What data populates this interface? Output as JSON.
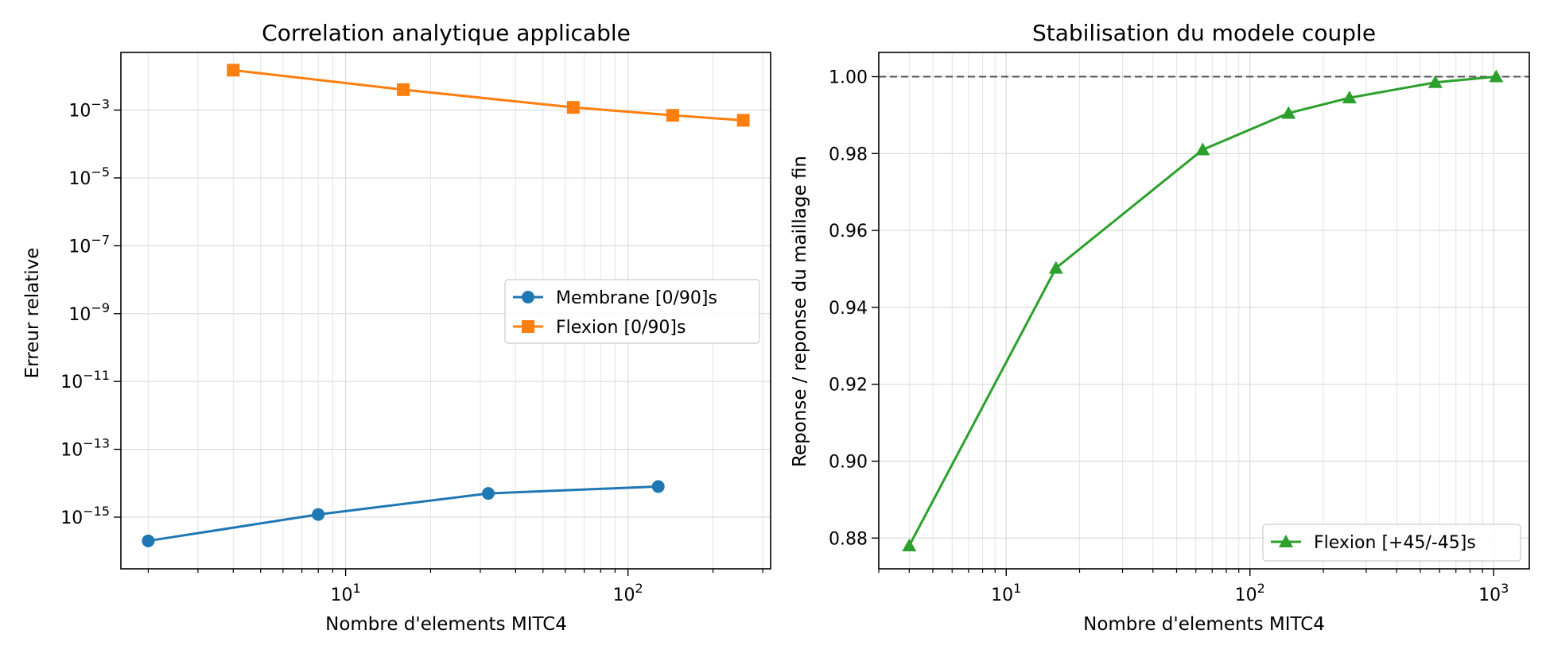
{
  "chart_data": [
    {
      "type": "line",
      "title": "Correlation analytique applicable",
      "xlabel": "Nombre d'elements MITC4",
      "ylabel": "Erreur relative",
      "xscale": "log",
      "yscale": "log",
      "xlim": [
        1.6,
        320
      ],
      "ylim": [
        3e-17,
        0.05
      ],
      "grid": true,
      "legend_position": "center-right",
      "x_ticks": [
        {
          "base": "10",
          "exp": "1",
          "value": 10
        },
        {
          "base": "10",
          "exp": "2",
          "value": 100
        }
      ],
      "y_ticks": [
        {
          "base": "10",
          "exp": "−3",
          "value": 0.001
        },
        {
          "base": "10",
          "exp": "−5",
          "value": 1e-05
        },
        {
          "base": "10",
          "exp": "−7",
          "value": 1e-07
        },
        {
          "base": "10",
          "exp": "−9",
          "value": 1e-09
        },
        {
          "base": "10",
          "exp": "−11",
          "value": 1e-11
        },
        {
          "base": "10",
          "exp": "−13",
          "value": 1e-13
        },
        {
          "base": "10",
          "exp": "−15",
          "value": 1e-15
        }
      ],
      "series": [
        {
          "name": "Membrane [0/90]s",
          "color": "#1f77b4",
          "marker": "circle",
          "x": [
            2,
            8,
            32,
            128
          ],
          "y": [
            2e-16,
            1.2e-15,
            5e-15,
            8e-15
          ]
        },
        {
          "name": "Flexion [0/90]s",
          "color": "#ff7f0e",
          "marker": "square",
          "x": [
            4,
            16,
            64,
            144,
            256
          ],
          "y": [
            0.015,
            0.004,
            0.0012,
            0.0007,
            0.0005
          ]
        }
      ]
    },
    {
      "type": "line",
      "title": "Stabilisation du modele couple",
      "xlabel": "Nombre d'elements MITC4",
      "ylabel": "Reponse / reponse du maillage fin",
      "xscale": "log",
      "yscale": "linear",
      "xlim": [
        3,
        1400
      ],
      "ylim": [
        0.872,
        1.0063
      ],
      "grid": true,
      "legend_position": "lower-right",
      "reference_line": {
        "y": 1.0,
        "style": "dashed",
        "color": "#555555"
      },
      "x_ticks": [
        {
          "base": "10",
          "exp": "1",
          "value": 10
        },
        {
          "base": "10",
          "exp": "2",
          "value": 100
        },
        {
          "base": "10",
          "exp": "3",
          "value": 1000
        }
      ],
      "y_ticks": [
        {
          "label": "0.88",
          "value": 0.88
        },
        {
          "label": "0.90",
          "value": 0.9
        },
        {
          "label": "0.92",
          "value": 0.92
        },
        {
          "label": "0.94",
          "value": 0.94
        },
        {
          "label": "0.96",
          "value": 0.96
        },
        {
          "label": "0.98",
          "value": 0.98
        },
        {
          "label": "1.00",
          "value": 1.0
        }
      ],
      "series": [
        {
          "name": "Flexion [+45/-45]s",
          "color": "#2ca02c",
          "marker": "triangle",
          "x": [
            4,
            16,
            64,
            144,
            256,
            576,
            1024
          ],
          "y": [
            0.878,
            0.9502,
            0.981,
            0.9905,
            0.9945,
            0.9985,
            1.0
          ]
        }
      ]
    }
  ]
}
